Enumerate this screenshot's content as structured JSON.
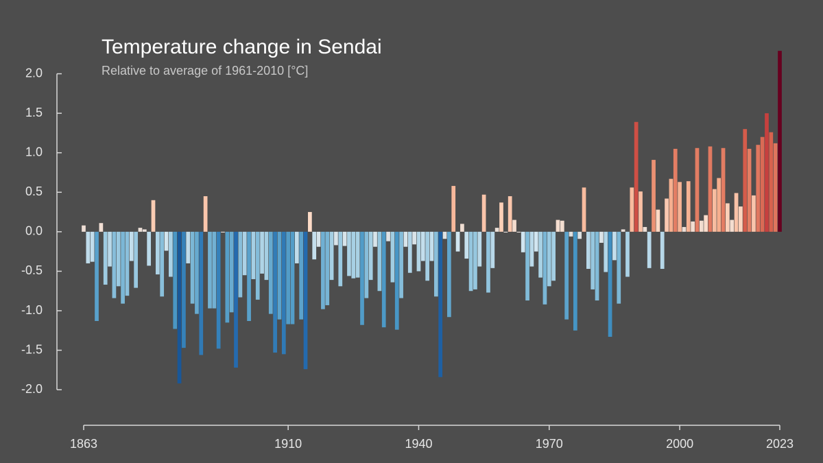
{
  "chart_data": {
    "type": "bar",
    "title": "Temperature change in Sendai",
    "subtitle": "Relative to average of 1961-2010  [°C]",
    "x": [
      1863,
      1864,
      1865,
      1866,
      1867,
      1868,
      1869,
      1870,
      1871,
      1872,
      1873,
      1874,
      1875,
      1876,
      1877,
      1878,
      1879,
      1880,
      1881,
      1882,
      1883,
      1884,
      1885,
      1886,
      1887,
      1888,
      1889,
      1890,
      1891,
      1892,
      1893,
      1894,
      1895,
      1896,
      1897,
      1898,
      1899,
      1900,
      1901,
      1902,
      1903,
      1904,
      1905,
      1906,
      1907,
      1908,
      1909,
      1910,
      1911,
      1912,
      1913,
      1914,
      1915,
      1916,
      1917,
      1918,
      1919,
      1920,
      1921,
      1922,
      1923,
      1924,
      1925,
      1926,
      1927,
      1928,
      1929,
      1930,
      1931,
      1932,
      1933,
      1934,
      1935,
      1936,
      1937,
      1938,
      1939,
      1940,
      1941,
      1942,
      1943,
      1944,
      1945,
      1946,
      1947,
      1948,
      1949,
      1950,
      1951,
      1952,
      1953,
      1954,
      1955,
      1956,
      1957,
      1958,
      1959,
      1960,
      1961,
      1962,
      1963,
      1964,
      1965,
      1966,
      1967,
      1968,
      1969,
      1970,
      1971,
      1972,
      1973,
      1974,
      1975,
      1976,
      1977,
      1978,
      1979,
      1980,
      1981,
      1982,
      1983,
      1984,
      1985,
      1986,
      1987,
      1988,
      1989,
      1990,
      1991,
      1992,
      1993,
      1994,
      1995,
      1996,
      1997,
      1998,
      1999,
      2000,
      2001,
      2002,
      2003,
      2004,
      2005,
      2006,
      2007,
      2008,
      2009,
      2010,
      2011,
      2012,
      2013,
      2014,
      2015,
      2016,
      2017,
      2018,
      2019,
      2020,
      2021,
      2022,
      2023
    ],
    "values": [
      0.08,
      -0.4,
      -0.38,
      -1.13,
      0.11,
      -0.67,
      -0.44,
      -0.84,
      -0.69,
      -0.91,
      -0.81,
      -0.37,
      -0.71,
      0.05,
      0.03,
      -0.43,
      0.4,
      -0.54,
      -0.82,
      -0.24,
      -0.57,
      -1.23,
      -1.92,
      -1.47,
      -0.4,
      -0.91,
      -1.04,
      -1.56,
      0.45,
      -0.97,
      -0.97,
      -1.48,
      -0.01,
      -1.15,
      -1.02,
      -1.72,
      -0.83,
      -0.55,
      -1.13,
      -0.6,
      -0.86,
      -0.53,
      -0.61,
      -1.04,
      -1.53,
      -1.11,
      -1.55,
      -1.17,
      -1.17,
      -0.4,
      -1.11,
      -1.74,
      0.25,
      -0.35,
      -0.19,
      -0.98,
      -0.93,
      -0.61,
      -0.17,
      -0.69,
      -0.18,
      -0.56,
      -0.59,
      -0.58,
      -1.18,
      -0.84,
      -0.61,
      -0.19,
      -0.75,
      -1.21,
      -0.12,
      -0.64,
      -1.24,
      -0.84,
      -0.19,
      -0.52,
      -0.16,
      -0.5,
      -0.37,
      -0.62,
      -0.37,
      -0.82,
      -1.84,
      -0.09,
      -1.08,
      0.58,
      -0.25,
      0.1,
      -0.34,
      -0.75,
      -0.73,
      -0.44,
      0.47,
      -0.77,
      -0.46,
      0.05,
      0.37,
      -0.01,
      0.45,
      0.15,
      -0.01,
      -0.26,
      -0.87,
      -0.44,
      -0.25,
      -0.58,
      -0.92,
      -0.69,
      -0.62,
      0.15,
      0.14,
      -1.11,
      -0.06,
      -1.25,
      -0.09,
      0.56,
      -0.47,
      -0.73,
      -0.87,
      -0.14,
      -0.51,
      -1.33,
      -0.36,
      -0.91,
      0.03,
      -0.57,
      0.56,
      1.39,
      0.51,
      0.06,
      -0.46,
      0.91,
      0.28,
      -0.47,
      0.42,
      0.67,
      1.05,
      0.63,
      0.06,
      0.64,
      0.13,
      1.06,
      0.14,
      0.21,
      1.08,
      0.54,
      0.68,
      1.06,
      0.36,
      0.15,
      0.49,
      0.32,
      1.3,
      1.05,
      0.46,
      1.1,
      1.2,
      1.5,
      1.26,
      1.12,
      2.29
    ],
    "color_scale": [
      "#053061",
      "#2166ac",
      "#4393c3",
      "#92c5de",
      "#d1e5f0",
      "#fddbc7",
      "#f4a582",
      "#d6604d",
      "#b2182b",
      "#67001f"
    ],
    "xlim": [
      1863,
      2023
    ],
    "xticks": [
      1863,
      1910,
      1940,
      1970,
      2000,
      2023
    ],
    "ylim": [
      -2.45,
      2.3
    ],
    "yticks": [
      {
        "value": 2,
        "label": "2.0"
      },
      1.5,
      {
        "value": 1,
        "label": "1.0"
      },
      0.5,
      {
        "value": 0,
        "label": "0.0"
      },
      -0.5,
      {
        "value": -1,
        "label": "-1.0"
      },
      -1.5,
      {
        "value": -2,
        "label": "-2.0"
      }
    ]
  }
}
